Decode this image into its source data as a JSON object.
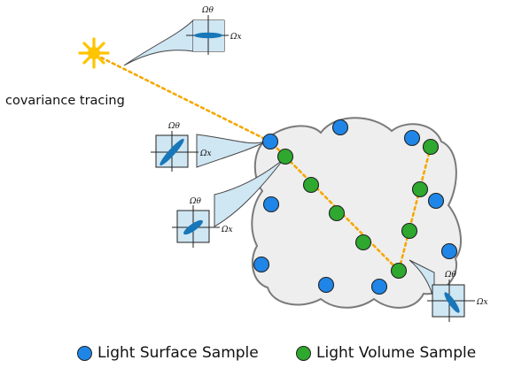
{
  "caption": "covariance tracing",
  "axis_labels": {
    "theta": "Ωθ",
    "x": "Ωx"
  },
  "legend": {
    "surface_label": "Light Surface Sample",
    "volume_label": "Light Volume Sample"
  },
  "colors": {
    "surface_sample": "#1f86e8",
    "volume_sample": "#2ea82e",
    "path": "#f5a800",
    "light": "#ffc400",
    "cloud_fill": "#eeeeee",
    "cloud_stroke": "#7a7a7a",
    "lobe": "#1877b8",
    "inset_bg": "#cfe6f3"
  },
  "icons": {
    "light_source": "sun-icon"
  }
}
